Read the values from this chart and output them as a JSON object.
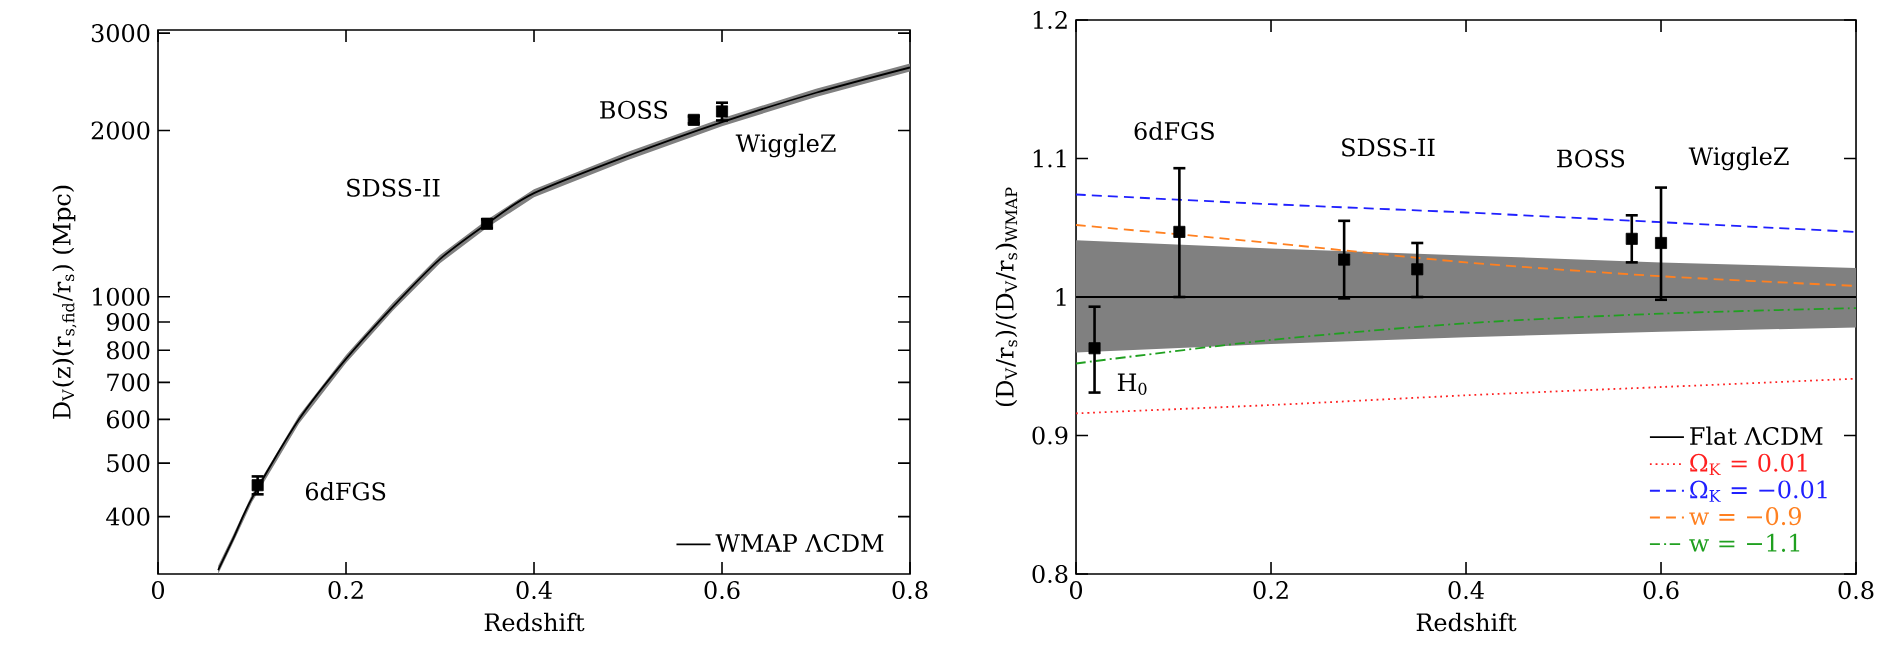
{
  "chart_data": [
    {
      "type": "line",
      "xlabel": "Redshift",
      "ylabel": "D$_{V}$(z)(r$_{s,fid}$/r$_{s}$)  (Mpc)",
      "log": true,
      "legend": "bottom right",
      "xlim": [
        0,
        0.8
      ],
      "xticks": [
        0,
        0.2,
        0.4,
        0.6,
        0.8
      ],
      "ylim": [
        315,
        3040
      ],
      "yticks": [
        400,
        500,
        600,
        700,
        800,
        900,
        1000,
        2000,
        3000
      ],
      "series": [
        {
          "name": "WMAP ΛCDM",
          "color": "#000000",
          "x": [
            0.064,
            0.08,
            0.1,
            0.15,
            0.2,
            0.25,
            0.3,
            0.35,
            0.4,
            0.5,
            0.6,
            0.7,
            0.8
          ],
          "values": [
            320,
            365,
            432,
            600,
            772,
            960,
            1170,
            1356,
            1540,
            1800,
            2070,
            2340,
            2600
          ],
          "lower": [
            315,
            359,
            425,
            590,
            759,
            944,
            1150,
            1333,
            1514,
            1769,
            2035,
            2300,
            2556
          ],
          "upper": [
            326,
            371,
            439,
            610,
            785,
            976,
            1190,
            1379,
            1566,
            1831,
            2105,
            2380,
            2644
          ]
        },
        {
          "type": "scatter",
          "marker": "square",
          "color": "#000000",
          "x": [
            0.106,
            0.35,
            0.57,
            0.6
          ],
          "values": [
            456,
            1356,
            2090,
            2165
          ],
          "errors": [
            17,
            25,
            30,
            80
          ]
        }
      ],
      "annotations": [
        {
          "text": "6dFGS",
          "x": 0.106,
          "y": 456
        },
        {
          "text": "SDSS-II",
          "x": 0.35,
          "y": 1356
        },
        {
          "text": "BOSS",
          "x": 0.57,
          "y": 2090
        },
        {
          "text": "WiggleZ",
          "x": 0.6,
          "y": 2165
        }
      ]
    },
    {
      "type": "line",
      "xlabel": "Redshift",
      "ylabel": "(D$_{V}$/r$_{s}$)/(D$_{V}$/r$_{s}$)$_{WMAP}$",
      "legend": "bottom right",
      "xlim": [
        0,
        0.8
      ],
      "xticks": [
        0,
        0.2,
        0.4,
        0.6,
        0.8
      ],
      "ylim": [
        0.8,
        1.2
      ],
      "yticks": [
        0.8,
        0.9,
        1,
        1.1,
        1.2
      ],
      "series": [
        {
          "name": "Flat ΛCDM",
          "color": "#000000",
          "x": [
            0,
            0.2,
            0.4,
            0.6,
            0.8
          ],
          "values": [
            1,
            1,
            1,
            1,
            1
          ],
          "lower": [
            0.96,
            0.966,
            0.971,
            0.975,
            0.978
          ],
          "upper": [
            1.041,
            1.035,
            1.03,
            1.025,
            1.021
          ]
        },
        {
          "name": "Ω$_{K}$ = 0.01",
          "color": "#ff2020",
          "line_style": "dotted",
          "x": [
            0,
            0.2,
            0.4,
            0.6,
            0.8
          ],
          "values": [
            0.916,
            0.922,
            0.929,
            0.935,
            0.941
          ]
        },
        {
          "name": "Ω$_{K}$ = −0.01",
          "color": "#2020ff",
          "line_style": "dashed",
          "x": [
            0,
            0.2,
            0.4,
            0.6,
            0.8
          ],
          "values": [
            1.074,
            1.067,
            1.061,
            1.054,
            1.047
          ]
        },
        {
          "name": "w = −0.9",
          "color": "#ff8020",
          "line_style": "dashed",
          "x": [
            0,
            0.2,
            0.4,
            0.6,
            0.8
          ],
          "values": [
            1.052,
            1.039,
            1.025,
            1.015,
            1.008
          ]
        },
        {
          "name": "w = −1.1",
          "color": "#20a020",
          "line_style": "dashdot",
          "x": [
            0,
            0.2,
            0.4,
            0.6,
            0.8
          ],
          "values": [
            0.952,
            0.969,
            0.981,
            0.988,
            0.992
          ]
        },
        {
          "type": "scatter",
          "marker": "square",
          "color": "#000000",
          "x": [
            0.019,
            0.106,
            0.275,
            0.35,
            0.57,
            0.6
          ],
          "values": [
            0.963,
            1.047,
            1.027,
            1.02,
            1.042,
            1.039
          ],
          "errors": [
            [
              0.931,
              0.993
            ],
            [
              1.0,
              1.093
            ],
            [
              0.999,
              1.055
            ],
            [
              1.0,
              1.039
            ],
            [
              1.025,
              1.059
            ],
            [
              0.998,
              1.079
            ]
          ]
        }
      ],
      "annotations": [
        "6dFGS",
        "SDSS-II",
        "BOSS",
        "WiggleZ",
        {
          "text": "H$_{0}$",
          "x": 0.019,
          "y": 0.963
        }
      ]
    }
  ]
}
